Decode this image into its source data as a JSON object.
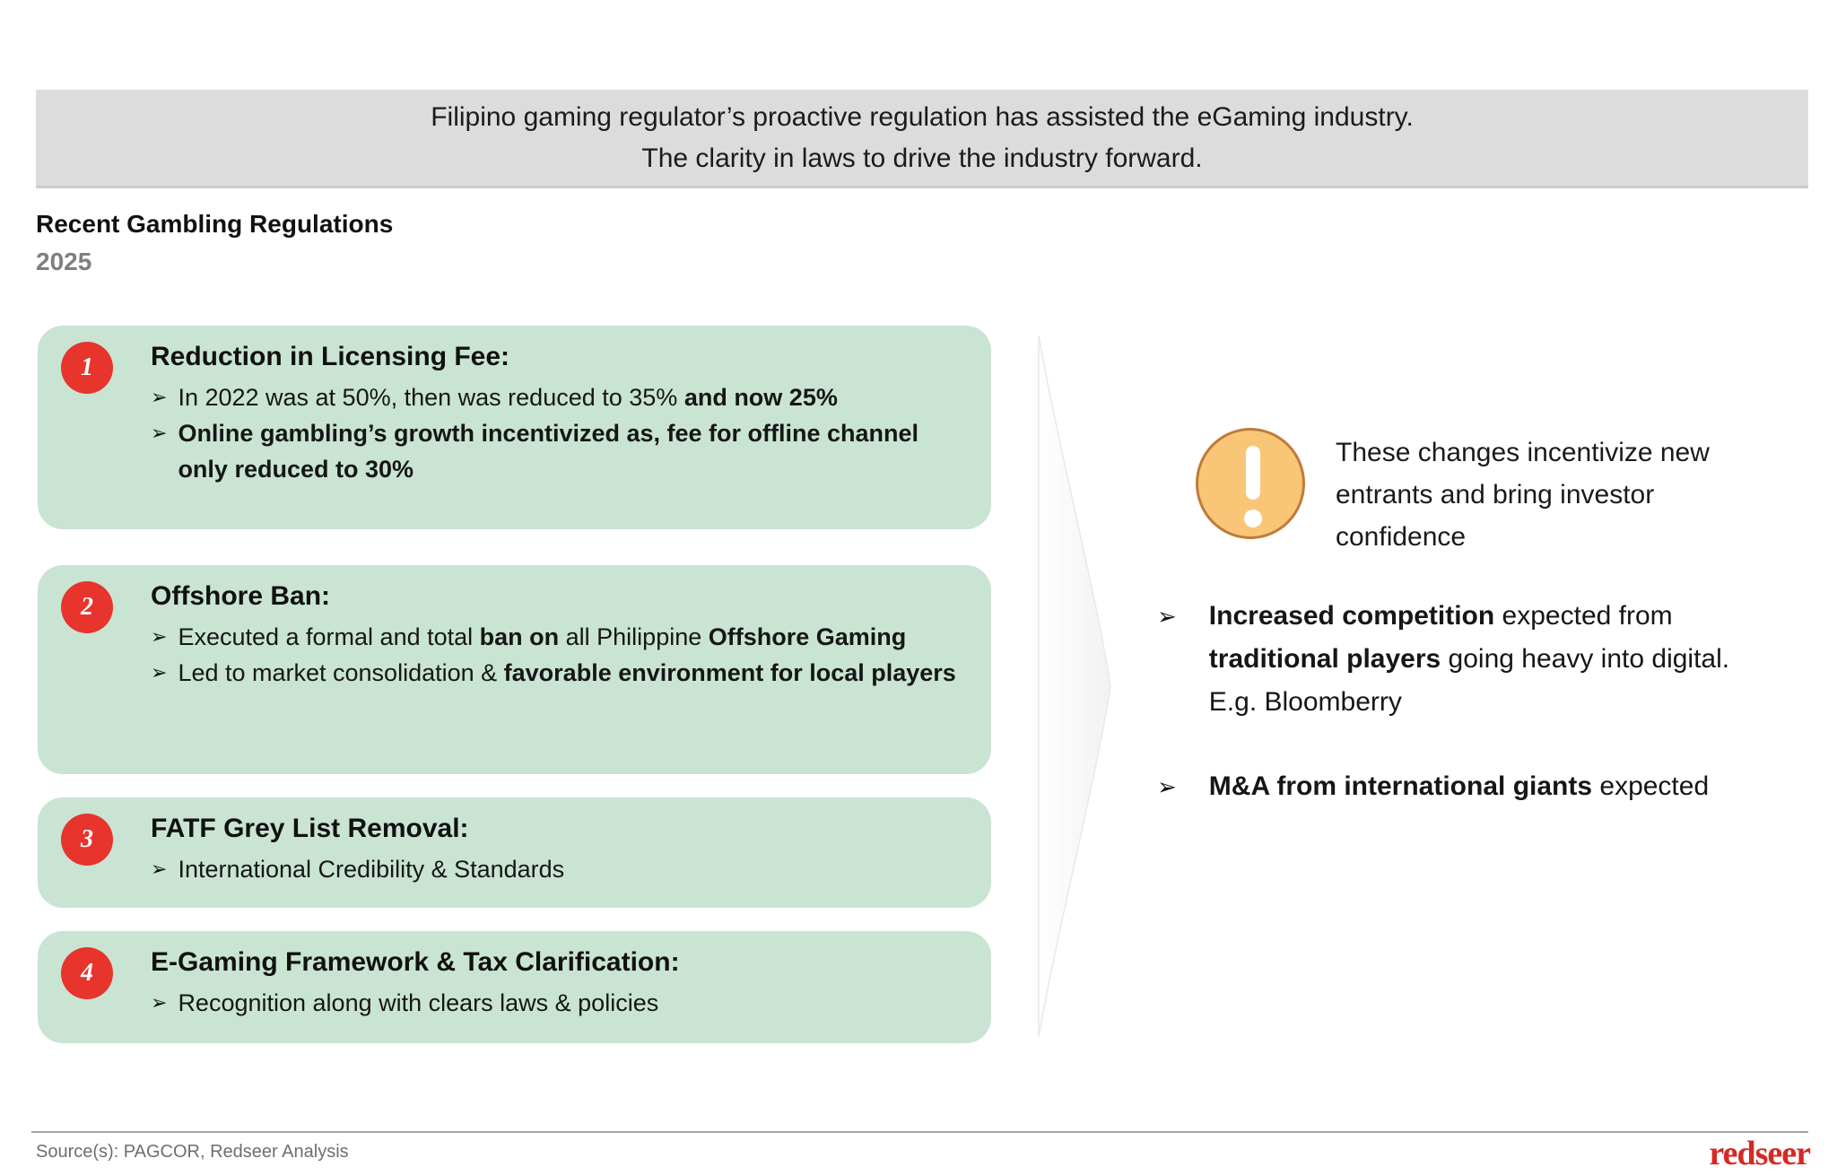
{
  "banner": {
    "line1": "Filipino gaming regulator’s proactive regulation has assisted the eGaming industry.",
    "line2": "The clarity in laws to drive the industry forward."
  },
  "section": {
    "title": "Recent Gambling Regulations",
    "year": "2025"
  },
  "bullet_glyph": "➢",
  "regulations": [
    {
      "number": "1",
      "heading": "Reduction in Licensing Fee:",
      "bullets": [
        {
          "segments": [
            {
              "text": "In 2022 was at 50%, then was reduced to 35% ",
              "bold": false
            },
            {
              "text": "and now 25%",
              "bold": true
            }
          ]
        },
        {
          "segments": [
            {
              "text": "Online gambling’s growth incentivized as, fee for offline channel only reduced to 30%",
              "bold": true
            }
          ]
        }
      ]
    },
    {
      "number": "2",
      "heading": "Offshore Ban:",
      "bullets": [
        {
          "segments": [
            {
              "text": "Executed a formal and total ",
              "bold": false
            },
            {
              "text": "ban on",
              "bold": true
            },
            {
              "text": " all Philippine ",
              "bold": false
            },
            {
              "text": "Offshore Gaming",
              "bold": true
            }
          ]
        },
        {
          "segments": [
            {
              "text": "Led to market consolidation & ",
              "bold": false
            },
            {
              "text": "favorable environment for local players",
              "bold": true
            }
          ]
        }
      ]
    },
    {
      "number": "3",
      "heading": "FATF Grey List Removal:",
      "bullets": [
        {
          "segments": [
            {
              "text": "International Credibility & Standards",
              "bold": false
            }
          ]
        }
      ]
    },
    {
      "number": "4",
      "heading": "E-Gaming Framework & Tax Clarification:",
      "bullets": [
        {
          "segments": [
            {
              "text": "Recognition along with clears laws & policies",
              "bold": false
            }
          ]
        }
      ]
    }
  ],
  "insight": {
    "icon": "exclamation-icon",
    "text": "These changes incentivize new entrants and bring investor confidence"
  },
  "takeaways": [
    {
      "segments": [
        {
          "text": "Increased competition",
          "bold": true
        },
        {
          "text": " expected from ",
          "bold": false
        },
        {
          "text": "traditional players",
          "bold": true
        },
        {
          "text": " going heavy into digital. E.g. Bloomberry",
          "bold": false
        }
      ]
    },
    {
      "segments": [
        {
          "text": "M&A from international giants",
          "bold": true
        },
        {
          "text": " expected",
          "bold": false
        }
      ]
    }
  ],
  "footer": {
    "source": "Source(s): PAGCOR, Redseer Analysis",
    "logo": "redseer"
  },
  "colors": {
    "banner_bg": "#dcdcdc",
    "card_bg": "#c9e4d3",
    "badge_red": "#e7342c",
    "alert_fill": "#f8c676",
    "alert_border": "#bf7b3b",
    "logo_red": "#d42a26",
    "muted_gray": "#7f7f7f"
  }
}
